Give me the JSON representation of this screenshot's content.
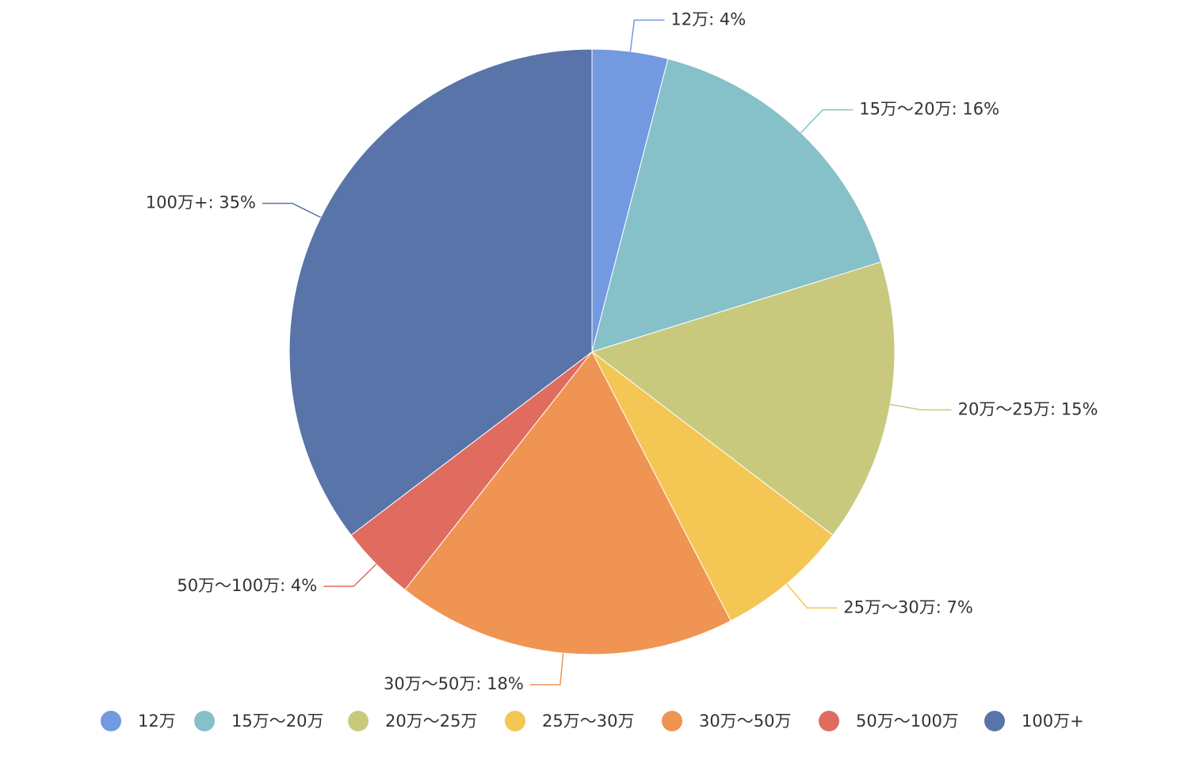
{
  "chart_data": {
    "type": "pie",
    "categories": [
      "12万",
      "15万～20万",
      "20万～25万",
      "25万～30万",
      "30万～50万",
      "50万～100万",
      "100万+"
    ],
    "values": [
      4,
      16,
      15,
      7,
      18,
      4,
      35
    ],
    "value_labels": [
      "4%",
      "16%",
      "15%",
      "7%",
      "18%",
      "4%",
      "35%"
    ],
    "label_separator": ": ",
    "colors": [
      "#7399e0",
      "#86c0c8",
      "#c9c97e",
      "#f4c654",
      "#f09453",
      "#e06c60",
      "#5874a9"
    ],
    "legend": "bottom"
  }
}
